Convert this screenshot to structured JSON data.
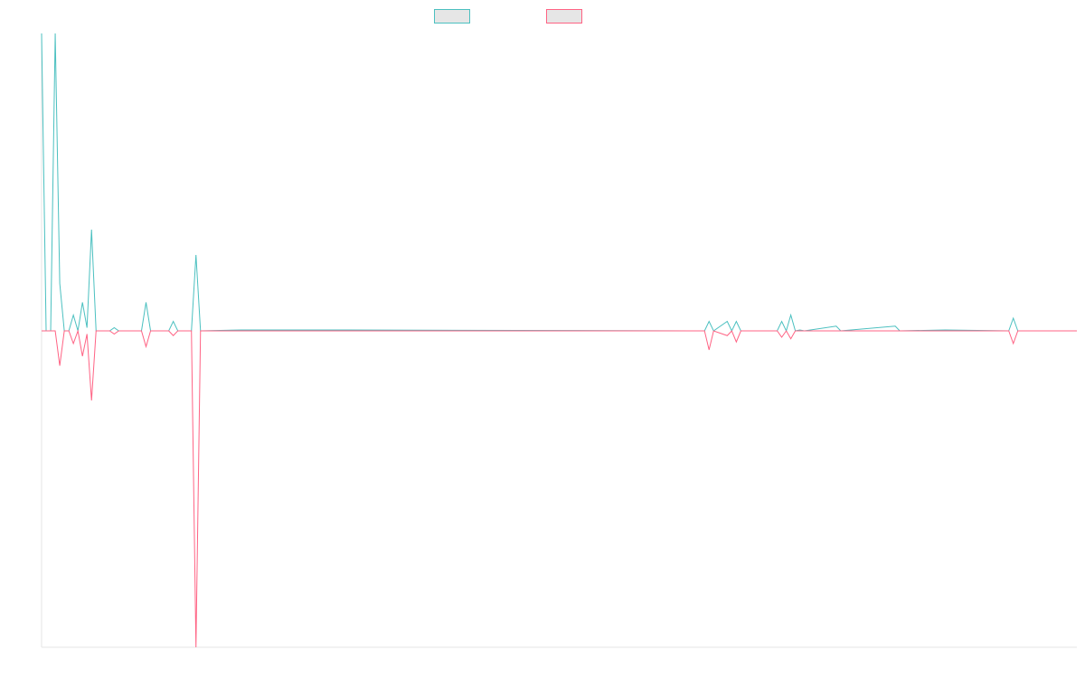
{
  "chart_data": {
    "type": "line",
    "title": "",
    "xlabel": "",
    "ylabel": "",
    "grid": false,
    "legend_position": "top-center",
    "ylim": [
      -100,
      94
    ],
    "n_points": 229,
    "series": [
      {
        "color": "#4bc0c0",
        "points": [
          [
            0,
            94
          ],
          [
            1,
            0
          ],
          [
            2,
            0
          ],
          [
            3,
            94
          ],
          [
            4,
            15
          ],
          [
            5,
            0
          ],
          [
            6,
            0
          ],
          [
            7,
            5
          ],
          [
            8,
            0
          ],
          [
            9,
            9
          ],
          [
            10,
            1
          ],
          [
            11,
            32
          ],
          [
            12,
            0
          ],
          [
            13,
            0
          ],
          [
            14,
            0
          ],
          [
            15,
            0
          ],
          [
            16,
            1
          ],
          [
            17,
            0
          ],
          [
            18,
            0
          ],
          [
            19,
            0
          ],
          [
            20,
            0
          ],
          [
            21,
            0
          ],
          [
            22,
            0
          ],
          [
            23,
            9
          ],
          [
            24,
            0
          ],
          [
            25,
            0
          ],
          [
            26,
            0
          ],
          [
            27,
            0
          ],
          [
            28,
            0
          ],
          [
            29,
            3
          ],
          [
            30,
            0
          ],
          [
            31,
            0
          ],
          [
            32,
            0
          ],
          [
            33,
            0
          ],
          [
            34,
            24
          ],
          [
            35,
            0
          ],
          [
            44,
            0.3
          ],
          [
            61,
            0.3
          ],
          [
            146,
            0
          ],
          [
            147,
            3
          ],
          [
            148,
            0
          ],
          [
            151,
            3
          ],
          [
            152,
            0
          ],
          [
            153,
            3
          ],
          [
            154,
            0
          ],
          [
            162,
            0
          ],
          [
            163,
            3
          ],
          [
            164,
            0
          ],
          [
            165,
            5
          ],
          [
            166,
            0
          ],
          [
            167,
            0.3
          ],
          [
            168,
            0
          ],
          [
            175,
            1.5
          ],
          [
            176,
            0
          ],
          [
            188,
            1.5
          ],
          [
            189,
            0
          ],
          [
            199,
            0.3
          ],
          [
            213,
            0
          ],
          [
            214,
            4
          ],
          [
            215,
            0
          ],
          [
            228,
            0
          ]
        ]
      },
      {
        "color": "#ff6384",
        "points": [
          [
            0,
            0
          ],
          [
            1,
            0
          ],
          [
            2,
            0
          ],
          [
            3,
            0
          ],
          [
            4,
            -11
          ],
          [
            5,
            0
          ],
          [
            6,
            0
          ],
          [
            7,
            -4
          ],
          [
            8,
            0
          ],
          [
            9,
            -8
          ],
          [
            10,
            -1
          ],
          [
            11,
            -22
          ],
          [
            12,
            0
          ],
          [
            13,
            0
          ],
          [
            14,
            0
          ],
          [
            15,
            0
          ],
          [
            16,
            -1
          ],
          [
            17,
            0
          ],
          [
            18,
            0
          ],
          [
            19,
            0
          ],
          [
            20,
            0
          ],
          [
            21,
            0
          ],
          [
            22,
            0
          ],
          [
            23,
            -5
          ],
          [
            24,
            0
          ],
          [
            25,
            0
          ],
          [
            26,
            0
          ],
          [
            27,
            0
          ],
          [
            28,
            0
          ],
          [
            29,
            -1.5
          ],
          [
            30,
            0
          ],
          [
            31,
            0
          ],
          [
            32,
            0
          ],
          [
            33,
            0
          ],
          [
            34,
            -100
          ],
          [
            35,
            0
          ],
          [
            146,
            0
          ],
          [
            147,
            -6
          ],
          [
            148,
            0
          ],
          [
            151,
            -1.5
          ],
          [
            152,
            0
          ],
          [
            153,
            -3.5
          ],
          [
            154,
            0
          ],
          [
            162,
            0
          ],
          [
            163,
            -2
          ],
          [
            164,
            0
          ],
          [
            165,
            -2.5
          ],
          [
            166,
            0
          ],
          [
            213,
            0
          ],
          [
            214,
            -4
          ],
          [
            215,
            0
          ],
          [
            228,
            0
          ]
        ]
      }
    ]
  }
}
